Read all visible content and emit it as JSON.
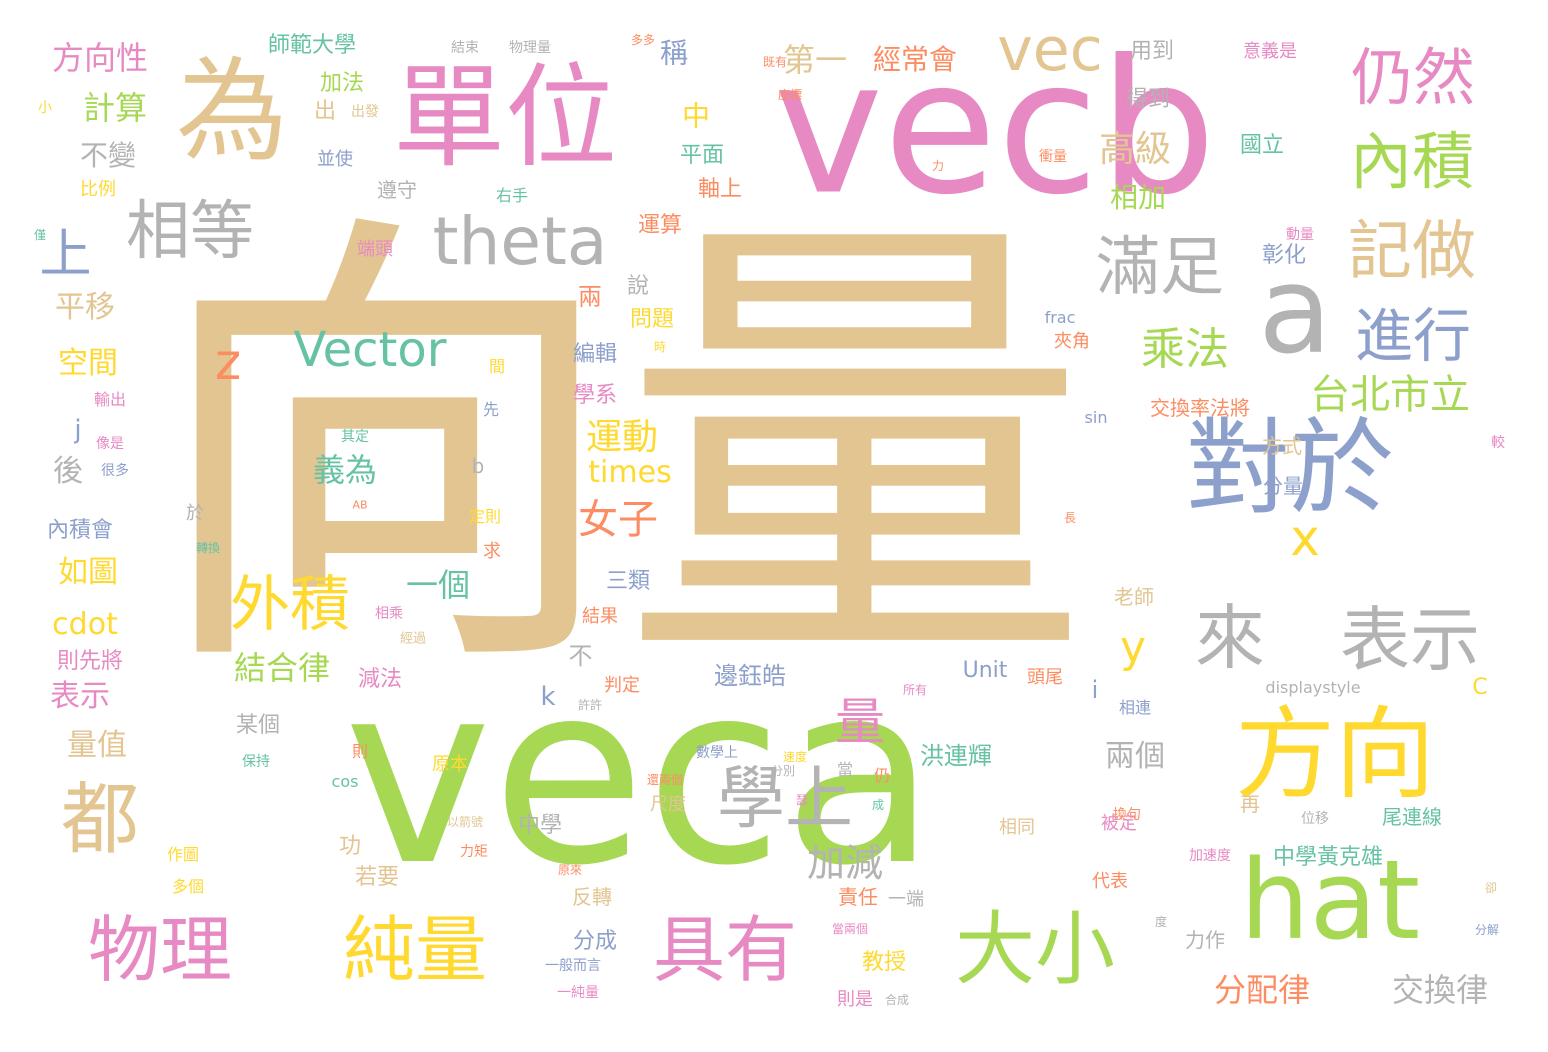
{
  "words": {
    "xiangliang": "向量",
    "veca": "veca",
    "vecb": "vecb",
    "danwei": "單位",
    "wei": "為",
    "vec": "vec",
    "duiyu": "對於",
    "fangxiang": "方向",
    "hat": "hat",
    "a_big": "a",
    "jieng": "仍然",
    "neiji": "內積",
    "jizuo": "記做",
    "theta": "theta",
    "xiangdeng": "相等",
    "shang": "上",
    "manzu": "滿足",
    "jinxing": "進行",
    "dou": "都",
    "wuli": "物理",
    "chunliang": "純量",
    "juyou": "具有",
    "daxiao": "大小",
    "lai": "來",
    "biaoshi_big": "表示",
    "xueshang": "學上",
    "waiji": "外積",
    "liang": "量",
    "chengfa": "乘法",
    "taibeishili": "台北市立",
    "x": "x",
    "y": "y",
    "z": "z",
    "vector": "Vector",
    "gaoji": "高級",
    "xiangjia": "相加",
    "diyi": "第一",
    "jingchanghui": "經常會",
    "yongdao": "用到",
    "fangxiangxing": "方向性",
    "shifandaxue": "師範大學",
    "jieshu": "結束",
    "wuliliang": "物理量",
    "jisuan": "計算",
    "jiafa": "加法",
    "cheng": "稱",
    "zhong_v": "中",
    "bubian": "不變",
    "chu": "出",
    "pingmian": "平面",
    "zhoushang": "軸上",
    "dedao": "得到",
    "guoli": "國立",
    "yiyishi": "意義是",
    "bingshi": "並使",
    "xiaoshi_blk": "小",
    "chufa": "出發",
    "bili": "比例",
    "youshou": "右手",
    "zunshou": "遵守",
    "yunsuan": "運算",
    "duantou": "端頭",
    "changhua": "彰化",
    "dongliang": "動量",
    "pingyi": "平移",
    "kongjian": "空間",
    "liang_2": "兩",
    "shuo": "說",
    "wenti": "問題",
    "bianji": "編輯",
    "xuexi": "學系",
    "jiaohuanlvfajiang": "交換率法將",
    "jiajiao": "夾角",
    "frac": "frac",
    "yundong": "運動",
    "nuzi": "女子",
    "times": "times",
    "yige": "一個",
    "sanlei": "三類",
    "jiehelv": "結合律",
    "bu": "不",
    "biaoshi": "表示",
    "liangzhi": "量值",
    "cdot": "cdot",
    "ruotu": "如圖",
    "zeshenjiang": "則先將",
    "neijihui": "內積會",
    "hou": "後",
    "j": "j",
    "k": "k",
    "i": "i",
    "b": "b",
    "yu": "於",
    "qiding": "其定",
    "yiwei": "義為",
    "AB": "AB",
    "dingze": "定則",
    "qiu": "求",
    "zhuanhuan": "轉換",
    "xiangcheng": "相乘",
    "jingguo": "經過",
    "jianfa": "減法",
    "mouge": "某個",
    "bianyuhao": "邊鈺皓",
    "hongliaohui": "洪連輝",
    "unit": "Unit",
    "touwei": "頭尾",
    "suoyou": "所有",
    "displaystyle": "displaystyle",
    "C": "C",
    "xiangdeng2": "相連",
    "lianggege": "兩個",
    "jiajian": "加減",
    "zhongxue": "中學",
    "zhongxuehuangkexiong": "中學黃克雄",
    "bei_ding": "被定",
    "zai": "再",
    "weilianxian": "尾連線",
    "jiasudu": "加速度",
    "fenpeilv": "分配律",
    "jiaohuanlv": "交換律",
    "lizuo": "力作",
    "fenliang": "分量",
    "fangshi": "方式",
    "sin": "sin",
    "chang": "長",
    "jiao": "較",
    "laoshi": "老師",
    "fenjie": "分解",
    "que": "卻",
    "du": "度",
    "fencheng": "分成",
    "fanzhuan": "反轉",
    "zeren": "責任",
    "yiduan": "一端",
    "jiaoshou": "教授",
    "yibanershuo": "一般而言",
    "yichunliang": "一純量",
    "zeshi": "則是",
    "hecheng": "合成",
    "dangliangge": "當兩個",
    "chidu": "尺度",
    "gong": "功",
    "ruoyao": "若要",
    "zuotu": "作圖",
    "duoge": "多個",
    "yuanben": "原本",
    "baochi": "保持",
    "cos": "cos",
    "ze": "則",
    "yiqianhao": "以箭號",
    "liju": "力矩",
    "yuanlai": "原來",
    "shuxueshang": "數學上",
    "huan": "還兩個",
    "sudu": "速度",
    "fenbie": "分別",
    "dang": "當",
    "reng": "仍",
    "cheng2": "成",
    "xiangtong": "相同",
    "daibiao": "代表",
    "huanju": "換句",
    "weiyi": "位移",
    "panding": "判定",
    "xuxu": "許許",
    "jie_guo": "結果",
    "xian": "先",
    "jian": "間",
    "shi": "時",
    "shuchu": "輸出",
    "xiangshi": "像是",
    "henduo": "很多",
    "jin": "僅",
    "duoduo": "多多",
    "jiyou": "既有",
    "zuobiao": "座標",
    "li": "力",
    "chongliang": "衝量",
    "se": "瑟"
  }
}
